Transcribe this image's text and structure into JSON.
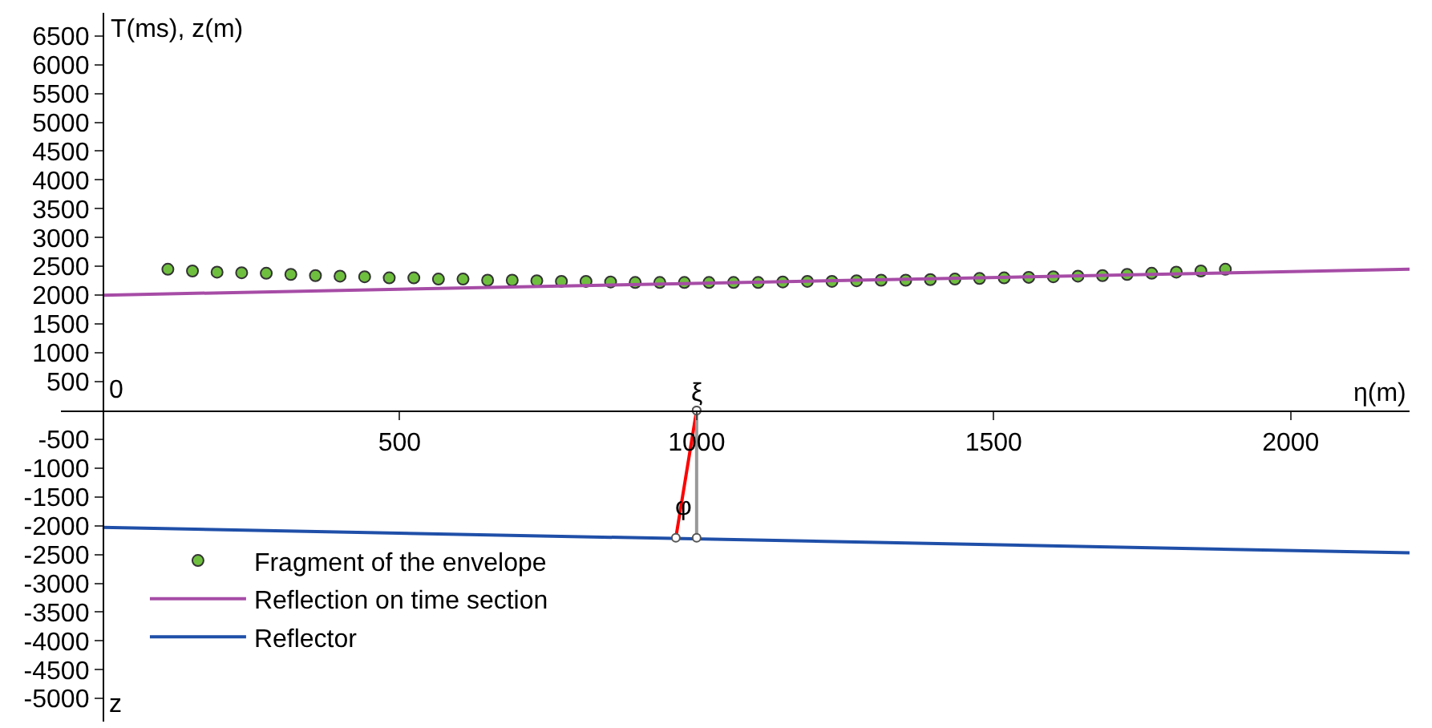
{
  "chart_data": {
    "type": "line",
    "xlabel": "η(m)",
    "ylabel": "T(ms), z(m)",
    "xlim": [
      -70,
      2200
    ],
    "ylim": [
      -5400,
      6900
    ],
    "xticks": [
      500,
      1000,
      1500,
      2000
    ],
    "yticks": [
      -5000,
      -4500,
      -4000,
      -3500,
      -3000,
      -2500,
      -2000,
      -1500,
      -1000,
      -500,
      500,
      1000,
      1500,
      2000,
      2500,
      3000,
      3500,
      4000,
      4500,
      5000,
      5500,
      6000,
      6500
    ],
    "legend": "bottom left",
    "annotations": [
      "0",
      {
        "text": "ξ",
        "x": 1000,
        "y": 0
      },
      "φ",
      "z"
    ],
    "series": [
      {
        "name": "Fragment of the envelope",
        "type": "scatter",
        "marker": "circle",
        "color": "#6fbf3f",
        "x": [
          110,
          151.4,
          192.8,
          234.2,
          275.6,
          317,
          358.4,
          399.8,
          441.2,
          482.6,
          524,
          565.4,
          606.8,
          648.2,
          689.6,
          731,
          772.4,
          813.8,
          855.2,
          896.6,
          938,
          979.4,
          1020.8,
          1062.2,
          1103.6,
          1145,
          1186.4,
          1227.8,
          1269.2,
          1310.6,
          1352,
          1393.4,
          1434.8,
          1476.2,
          1517.6,
          1559,
          1600.4,
          1641.8,
          1683.2,
          1724.6,
          1766,
          1807.4,
          1848.8,
          1890
        ],
        "values": [
          2450,
          2420,
          2400,
          2390,
          2380,
          2360,
          2340,
          2330,
          2320,
          2300,
          2300,
          2280,
          2280,
          2260,
          2260,
          2250,
          2240,
          2240,
          2230,
          2220,
          2220,
          2220,
          2220,
          2220,
          2220,
          2230,
          2240,
          2240,
          2250,
          2260,
          2260,
          2270,
          2280,
          2290,
          2300,
          2310,
          2320,
          2330,
          2340,
          2360,
          2380,
          2400,
          2420,
          2450
        ]
      },
      {
        "name": "Reflection on time section",
        "color": "#a64ca6",
        "x": [
          0,
          2200
        ],
        "values": [
          2000,
          2450
        ]
      },
      {
        "name": "Reflector",
        "color": "#1f4fa8",
        "x": [
          0,
          2200
        ],
        "values": [
          -2030,
          -2470
        ]
      },
      {
        "marker": "circle",
        "color": "#ff0000",
        "x": [
          1000,
          965
        ],
        "values": [
          0,
          -2210
        ]
      },
      {
        "marker": "circle",
        "color": "#999999",
        "x": [
          1000,
          1000
        ],
        "values": [
          0,
          -2210
        ]
      }
    ]
  }
}
